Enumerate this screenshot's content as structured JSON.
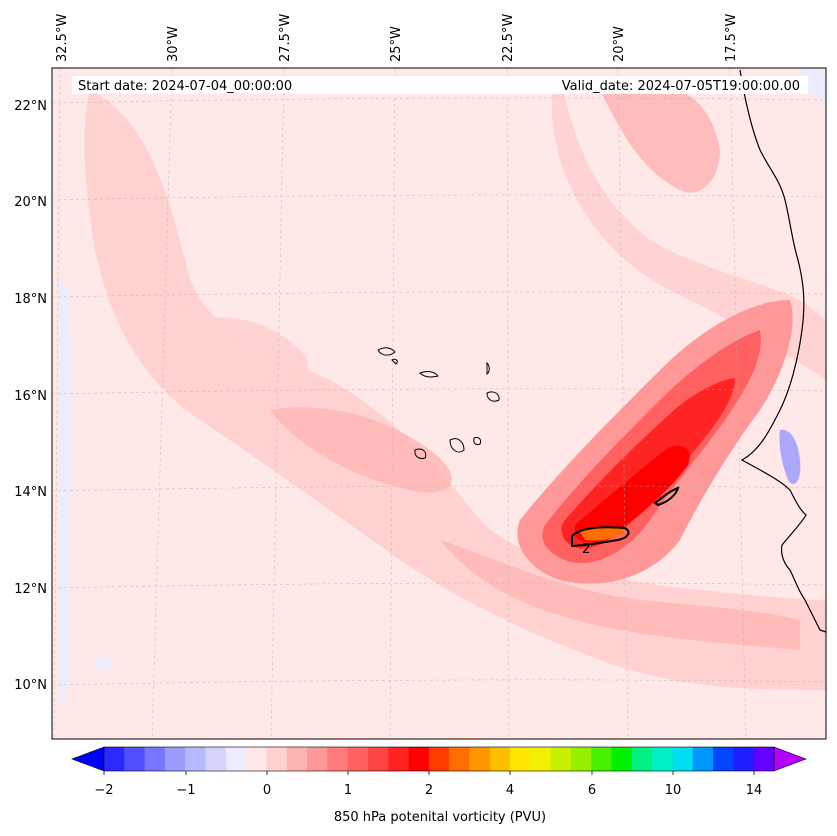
{
  "header": {
    "start_date": "Start date: 2024-07-04_00:00:00",
    "valid_date": "Valid_date: 2024-07-05T19:00:00.00"
  },
  "map": {
    "lon_labels": [
      "32.5°W",
      "30°W",
      "27.5°W",
      "25°W",
      "22.5°W",
      "20°W",
      "17.5°W"
    ],
    "lat_labels": [
      "22°N",
      "20°N",
      "18°N",
      "16°N",
      "14°N",
      "12°N",
      "10°N"
    ],
    "contour_label": "2"
  },
  "colorbar": {
    "title": "850 hPa potenital vorticity (PVU)",
    "ticks": [
      "−2",
      "−1",
      "0",
      "1",
      "2",
      "4",
      "6",
      "10",
      "14"
    ],
    "colors": [
      "#0000ff",
      "#2a2aff",
      "#5050ff",
      "#7676ff",
      "#9c9cff",
      "#b8b8ff",
      "#d4d4ff",
      "#ececff",
      "#ffe8e8",
      "#ffd0d0",
      "#ffb4b4",
      "#ff9898",
      "#ff7c7c",
      "#ff6060",
      "#ff4444",
      "#ff2424",
      "#ff0000",
      "#ff3c00",
      "#ff6e00",
      "#ff9600",
      "#ffbe00",
      "#ffe600",
      "#f0f000",
      "#c8f000",
      "#96f000",
      "#46f000",
      "#00f000",
      "#00f082",
      "#00f0c8",
      "#00dcf0",
      "#0096ff",
      "#0046ff",
      "#1e1eff",
      "#6400ff",
      "#b400ff"
    ]
  }
}
